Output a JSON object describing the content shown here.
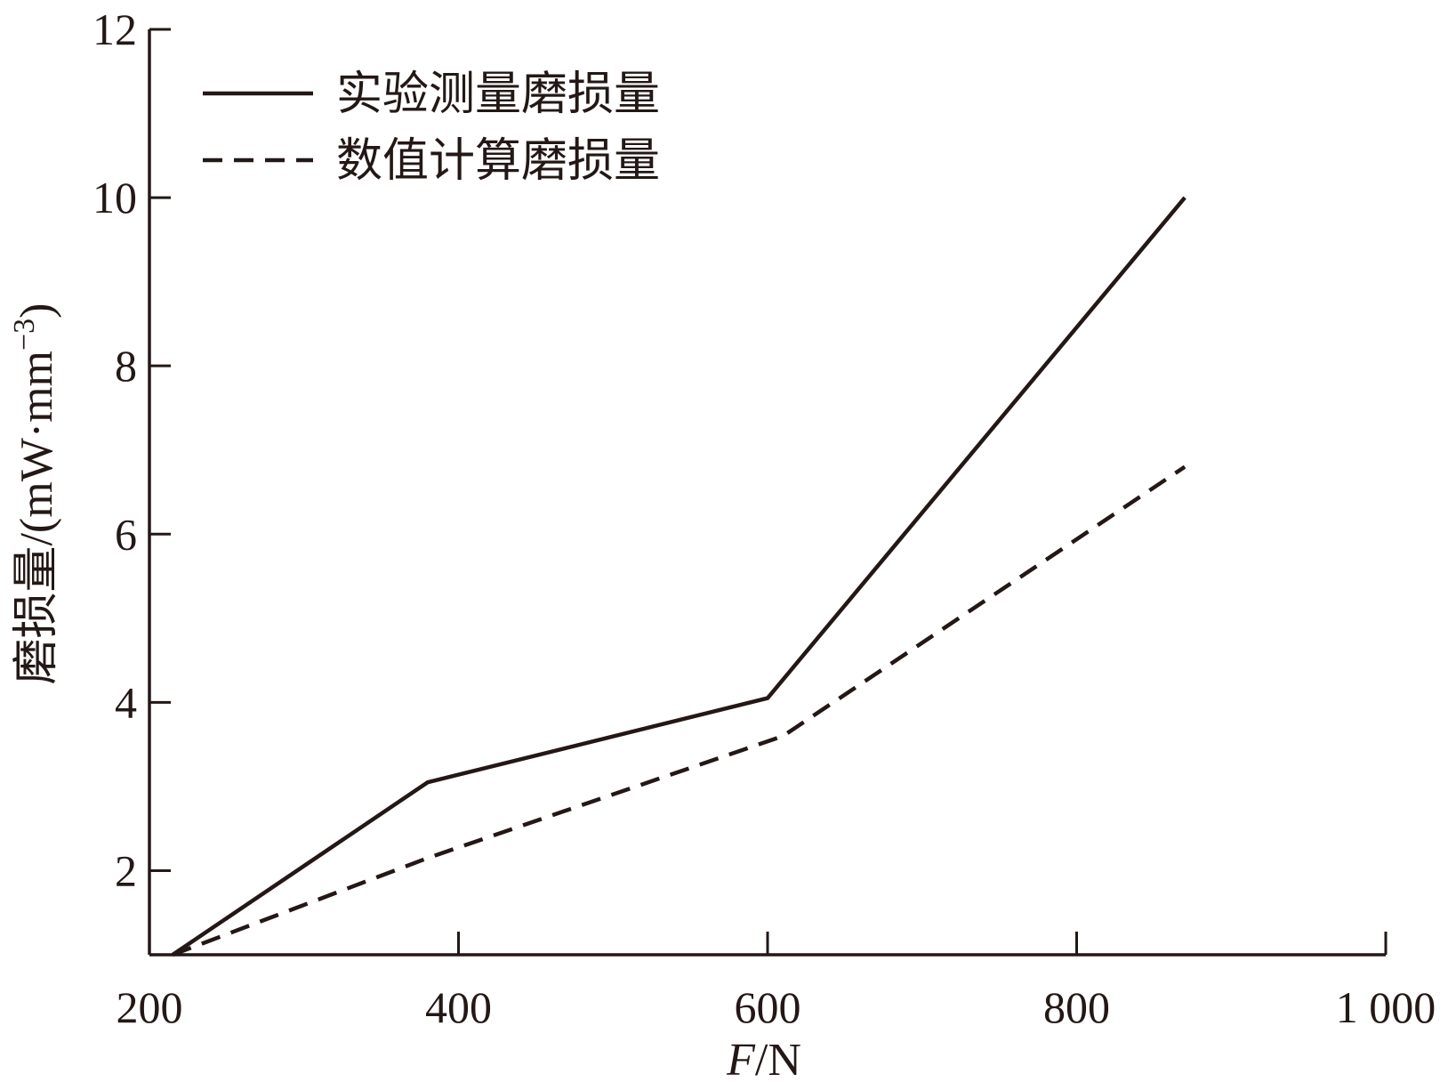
{
  "chart_data": {
    "type": "line",
    "title": "",
    "xlabel_italic": "F",
    "xlabel_rest": "/N",
    "ylabel": "磨损量/(mW·mm",
    "ylabel_sup": "−3",
    "ylabel_close": ")",
    "xlim": [
      200,
      1000
    ],
    "ylim": [
      1,
      12
    ],
    "xticks": [
      200,
      400,
      600,
      800,
      1000
    ],
    "xtick_labels": [
      "200",
      "400",
      "600",
      "800",
      "1 000"
    ],
    "yticks": [
      2,
      4,
      6,
      8,
      10,
      12
    ],
    "ytick_labels": [
      "2",
      "4",
      "6",
      "8",
      "10",
      "12"
    ],
    "legend_position": "top-left",
    "grid": false,
    "color": "#231815",
    "series": [
      {
        "name": "实验测量磨损量",
        "style": "solid",
        "x": [
          215,
          380,
          600,
          870
        ],
        "y": [
          1.0,
          3.05,
          4.05,
          10.0
        ]
      },
      {
        "name": "数值计算磨损量",
        "style": "dashed",
        "x": [
          215,
          380,
          610,
          870
        ],
        "y": [
          1.0,
          2.15,
          3.6,
          6.8
        ]
      }
    ]
  }
}
